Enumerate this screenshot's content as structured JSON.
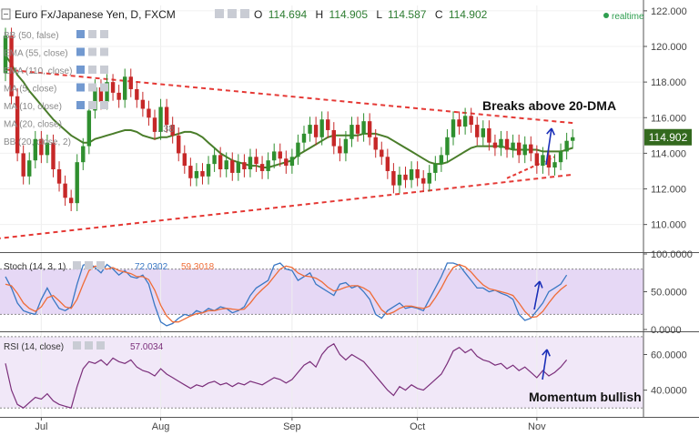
{
  "header": {
    "symbol_title": "Euro Fx/Japanese Yen, D, FXCM",
    "o_label": "O",
    "o_value": "114.694",
    "h_label": "H",
    "h_value": "114.905",
    "l_label": "L",
    "l_value": "114.587",
    "c_label": "C",
    "c_value": "114.902",
    "realtime_label": "realtime"
  },
  "indicator_legends": {
    "main": [
      "BB (50, false)",
      "EMA (55, close)",
      "EMA (110, close)",
      "MA (5, close)",
      "MA (10, close)",
      "MA (20, close)",
      "BB (20, close, 2)"
    ],
    "stoch": {
      "label": "Stoch (14, 3, 1)",
      "k": "72.0302",
      "d": "59.3018"
    },
    "rsi": {
      "label": "RSI (14, close)",
      "value": "57.0034"
    }
  },
  "price_tag": "114.902",
  "ma_inline_value": "...38",
  "annotations": {
    "breakout": "Breaks above 20-DMA",
    "momentum": "Momentum bullish"
  },
  "colors": {
    "up": "#2f8f2f",
    "down": "#c62828",
    "ma": "#4a7d2a",
    "trend": "#e53935",
    "stoch_k": "#3a78c4",
    "stoch_d": "#ef6c37",
    "rsi": "#7b2f7b",
    "band": "#e6d8f5",
    "arrow": "#1a2fb8",
    "price_tag": "#33691e"
  },
  "chart_data": [
    {
      "type": "candlestick",
      "title": "Euro Fx/Japanese Yen, D, FXCM",
      "x_ticks": [
        "Jul",
        "Aug",
        "Sep",
        "Oct",
        "Nov"
      ],
      "y_ticks": [
        "110.000",
        "112.000",
        "114.000",
        "116.000",
        "118.000",
        "120.000",
        "122.000"
      ],
      "ylim": [
        108.5,
        122.3
      ],
      "last_close": 114.902,
      "candles": [
        {
          "o": 118.5,
          "c": 120.6
        },
        {
          "o": 120.6,
          "c": 117.2
        },
        {
          "o": 117.2,
          "c": 114.0
        },
        {
          "o": 114.0,
          "c": 112.7
        },
        {
          "o": 112.7,
          "c": 113.6
        },
        {
          "o": 113.6,
          "c": 114.8
        },
        {
          "o": 114.8,
          "c": 113.9
        },
        {
          "o": 113.9,
          "c": 114.6
        },
        {
          "o": 114.6,
          "c": 113.1
        },
        {
          "o": 113.1,
          "c": 112.3
        },
        {
          "o": 112.3,
          "c": 111.5
        },
        {
          "o": 111.5,
          "c": 111.2
        },
        {
          "o": 111.2,
          "c": 113.5
        },
        {
          "o": 113.5,
          "c": 114.4
        },
        {
          "o": 114.4,
          "c": 116.4
        },
        {
          "o": 116.4,
          "c": 117.7
        },
        {
          "o": 117.7,
          "c": 116.9
        },
        {
          "o": 116.9,
          "c": 118.0
        },
        {
          "o": 118.0,
          "c": 117.4
        },
        {
          "o": 117.4,
          "c": 117.0
        },
        {
          "o": 117.0,
          "c": 118.3
        },
        {
          "o": 118.3,
          "c": 117.6
        },
        {
          "o": 117.6,
          "c": 117.0
        },
        {
          "o": 117.0,
          "c": 116.5
        },
        {
          "o": 116.5,
          "c": 116.0
        },
        {
          "o": 116.0,
          "c": 115.2
        },
        {
          "o": 115.2,
          "c": 116.6
        },
        {
          "o": 116.6,
          "c": 115.6
        },
        {
          "o": 115.6,
          "c": 115.0
        },
        {
          "o": 115.0,
          "c": 114.0
        },
        {
          "o": 114.0,
          "c": 113.3
        },
        {
          "o": 113.3,
          "c": 112.6
        },
        {
          "o": 112.6,
          "c": 113.0
        },
        {
          "o": 113.0,
          "c": 112.7
        },
        {
          "o": 112.7,
          "c": 113.4
        },
        {
          "o": 113.4,
          "c": 113.9
        },
        {
          "o": 113.9,
          "c": 113.1
        },
        {
          "o": 113.1,
          "c": 113.6
        },
        {
          "o": 113.6,
          "c": 112.9
        },
        {
          "o": 112.9,
          "c": 113.5
        },
        {
          "o": 113.5,
          "c": 113.1
        },
        {
          "o": 113.1,
          "c": 113.8
        },
        {
          "o": 113.8,
          "c": 113.4
        },
        {
          "o": 113.4,
          "c": 113.0
        },
        {
          "o": 113.0,
          "c": 113.6
        },
        {
          "o": 113.6,
          "c": 114.1
        },
        {
          "o": 114.1,
          "c": 113.7
        },
        {
          "o": 113.7,
          "c": 113.3
        },
        {
          "o": 113.3,
          "c": 113.8
        },
        {
          "o": 113.8,
          "c": 114.6
        },
        {
          "o": 114.6,
          "c": 115.1
        },
        {
          "o": 115.1,
          "c": 115.6
        },
        {
          "o": 115.6,
          "c": 114.9
        },
        {
          "o": 114.9,
          "c": 115.9
        },
        {
          "o": 115.9,
          "c": 115.3
        },
        {
          "o": 115.3,
          "c": 114.4
        },
        {
          "o": 114.4,
          "c": 114.0
        },
        {
          "o": 114.0,
          "c": 114.8
        },
        {
          "o": 114.8,
          "c": 115.6
        },
        {
          "o": 115.6,
          "c": 115.1
        },
        {
          "o": 115.1,
          "c": 115.8
        },
        {
          "o": 115.8,
          "c": 114.9
        },
        {
          "o": 114.9,
          "c": 114.2
        },
        {
          "o": 114.2,
          "c": 113.8
        },
        {
          "o": 113.8,
          "c": 113.0
        },
        {
          "o": 113.0,
          "c": 112.2
        },
        {
          "o": 112.2,
          "c": 112.8
        },
        {
          "o": 112.8,
          "c": 112.5
        },
        {
          "o": 112.5,
          "c": 113.1
        },
        {
          "o": 113.1,
          "c": 112.6
        },
        {
          "o": 112.6,
          "c": 112.3
        },
        {
          "o": 112.3,
          "c": 112.9
        },
        {
          "o": 112.9,
          "c": 113.4
        },
        {
          "o": 113.4,
          "c": 113.9
        },
        {
          "o": 113.9,
          "c": 114.9
        },
        {
          "o": 114.9,
          "c": 115.9
        },
        {
          "o": 115.9,
          "c": 115.5
        },
        {
          "o": 115.5,
          "c": 116.1
        },
        {
          "o": 116.1,
          "c": 115.6
        },
        {
          "o": 115.6,
          "c": 114.9
        },
        {
          "o": 114.9,
          "c": 115.4
        },
        {
          "o": 115.4,
          "c": 114.6
        },
        {
          "o": 114.6,
          "c": 114.3
        },
        {
          "o": 114.3,
          "c": 114.8
        },
        {
          "o": 114.8,
          "c": 114.2
        },
        {
          "o": 114.2,
          "c": 114.6
        },
        {
          "o": 114.6,
          "c": 113.9
        },
        {
          "o": 113.9,
          "c": 114.5
        },
        {
          "o": 114.5,
          "c": 114.0
        },
        {
          "o": 114.0,
          "c": 113.3
        },
        {
          "o": 113.3,
          "c": 113.9
        },
        {
          "o": 113.9,
          "c": 113.2
        },
        {
          "o": 113.2,
          "c": 113.5
        },
        {
          "o": 113.5,
          "c": 114.1
        },
        {
          "o": 114.1,
          "c": 114.7
        },
        {
          "o": 114.7,
          "c": 114.9
        }
      ],
      "ma20": [
        119.5,
        119.0,
        118.4,
        118.0,
        117.5,
        117.1,
        116.7,
        116.3,
        115.9,
        115.6,
        115.3,
        115.0,
        114.8,
        114.6,
        114.6,
        114.8,
        114.9,
        115.0,
        115.1,
        115.2,
        115.3,
        115.3,
        115.2,
        115.0,
        114.9,
        114.8,
        114.9,
        114.9,
        115.0,
        115.1,
        115.2,
        115.2,
        115.1,
        114.9,
        114.6,
        114.3,
        114.0,
        113.8,
        113.6,
        113.5,
        113.4,
        113.3,
        113.3,
        113.2,
        113.2,
        113.3,
        113.4,
        113.5,
        113.6,
        113.9,
        114.1,
        114.3,
        114.5,
        114.7,
        114.9,
        115.0,
        115.0,
        115.0,
        115.0,
        115.0,
        115.1,
        115.1,
        115.1,
        115.0,
        114.9,
        114.7,
        114.5,
        114.3,
        114.1,
        113.9,
        113.7,
        113.5,
        113.4,
        113.4,
        113.5,
        113.7,
        113.9,
        114.1,
        114.3,
        114.4,
        114.4,
        114.4,
        114.4,
        114.4,
        114.3,
        114.2,
        114.2,
        114.2,
        114.2,
        114.2,
        114.1,
        114.1,
        114.1,
        114.1,
        114.2,
        114.3
      ],
      "trendlines": [
        {
          "name": "upper",
          "from": [
            0,
            118.7
          ],
          "to": [
            95,
            115.7
          ]
        },
        {
          "name": "lower",
          "from": [
            -7,
            109.0
          ],
          "to": [
            95,
            112.8
          ]
        }
      ]
    },
    {
      "type": "line",
      "title": "Stoch (14, 3, 1)",
      "y_ticks": [
        "0.0000",
        "50.0000",
        "100.0000"
      ],
      "ylim": [
        0,
        100
      ],
      "band": [
        20,
        80
      ],
      "series": [
        {
          "name": "72.0302",
          "values": [
            70,
            55,
            35,
            25,
            22,
            20,
            40,
            55,
            40,
            28,
            25,
            30,
            60,
            85,
            88,
            82,
            75,
            86,
            80,
            72,
            78,
            70,
            68,
            72,
            60,
            32,
            10,
            5,
            8,
            15,
            20,
            18,
            25,
            22,
            28,
            25,
            30,
            28,
            22,
            25,
            30,
            45,
            55,
            60,
            65,
            85,
            88,
            80,
            78,
            65,
            70,
            75,
            60,
            55,
            50,
            45,
            60,
            62,
            55,
            58,
            50,
            40,
            20,
            15,
            25,
            30,
            35,
            28,
            30,
            28,
            25,
            40,
            55,
            70,
            88,
            88,
            85,
            75,
            65,
            55,
            55,
            50,
            52,
            48,
            45,
            40,
            20,
            12,
            15,
            25,
            35,
            50,
            55,
            60,
            72
          ]
        },
        {
          "name": "59.3018",
          "values": [
            60,
            58,
            48,
            35,
            28,
            24,
            30,
            42,
            45,
            38,
            30,
            28,
            40,
            60,
            78,
            84,
            82,
            80,
            82,
            78,
            76,
            74,
            70,
            70,
            66,
            52,
            32,
            18,
            10,
            10,
            14,
            18,
            21,
            22,
            25,
            25,
            27,
            28,
            27,
            26,
            27,
            35,
            45,
            53,
            60,
            70,
            80,
            84,
            82,
            75,
            71,
            70,
            68,
            63,
            56,
            51,
            53,
            56,
            58,
            58,
            55,
            50,
            38,
            26,
            20,
            23,
            28,
            31,
            31,
            29,
            28,
            31,
            42,
            55,
            70,
            82,
            86,
            83,
            76,
            67,
            59,
            54,
            52,
            50,
            48,
            45,
            35,
            24,
            16,
            17,
            24,
            35,
            45,
            53,
            59
          ]
        }
      ]
    },
    {
      "type": "line",
      "title": "RSI (14, close)",
      "y_ticks": [
        "40.0000",
        "60.0000"
      ],
      "ylim": [
        25,
        72
      ],
      "band": [
        30,
        70
      ],
      "series": [
        {
          "name": "57.0034",
          "values": [
            55,
            40,
            32,
            30,
            33,
            36,
            35,
            38,
            34,
            32,
            31,
            30,
            42,
            52,
            56,
            55,
            57,
            54,
            58,
            56,
            55,
            57,
            53,
            51,
            50,
            48,
            52,
            49,
            47,
            45,
            43,
            41,
            43,
            42,
            44,
            45,
            43,
            44,
            42,
            44,
            43,
            45,
            44,
            43,
            45,
            47,
            46,
            44,
            46,
            50,
            54,
            56,
            53,
            60,
            64,
            66,
            60,
            57,
            60,
            58,
            56,
            52,
            48,
            44,
            40,
            37,
            42,
            40,
            43,
            41,
            40,
            43,
            46,
            49,
            55,
            62,
            64,
            61,
            63,
            59,
            57,
            56,
            54,
            55,
            52,
            54,
            51,
            53,
            50,
            47,
            51,
            48,
            50,
            53,
            57
          ]
        }
      ]
    }
  ]
}
